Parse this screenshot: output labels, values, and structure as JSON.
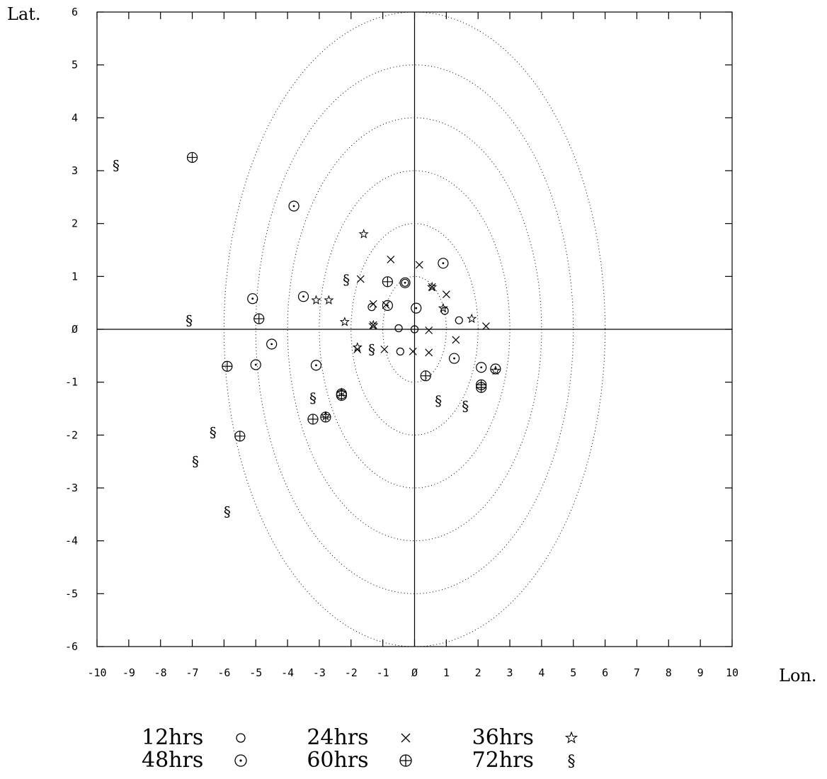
{
  "chart_data": {
    "type": "scatter",
    "title": "",
    "xlabel": "Lon.",
    "ylabel": "Lat.",
    "xlim": [
      -10,
      10
    ],
    "ylim": [
      -6,
      6
    ],
    "x_ticks": [
      -10,
      -9,
      -8,
      -7,
      -6,
      -5,
      -4,
      -3,
      -2,
      -1,
      0,
      1,
      2,
      3,
      4,
      5,
      6,
      7,
      8,
      9,
      10
    ],
    "y_ticks": [
      6,
      5,
      4,
      3,
      2,
      1,
      0,
      -1,
      -2,
      -3,
      -4,
      -5,
      -6
    ],
    "zero_label": "Ø",
    "grid": false,
    "reference_ellipses": [
      1,
      2,
      3,
      4,
      5,
      6
    ],
    "legend_position": "bottom",
    "series": [
      {
        "name": "12hrs",
        "marker": "circle",
        "points": [
          [
            -0.5,
            0.02
          ],
          [
            0,
            0
          ],
          [
            -0.45,
            -0.42
          ],
          [
            1.4,
            0.17
          ],
          [
            -0.3,
            0.88
          ],
          [
            -1.35,
            0.42
          ],
          [
            0.95,
            0.35
          ]
        ]
      },
      {
        "name": "24hrs",
        "marker": "x",
        "points": [
          [
            0.15,
            1.22
          ],
          [
            -1.7,
            0.95
          ],
          [
            -1.3,
            0.48
          ],
          [
            -0.9,
            0.46
          ],
          [
            1.0,
            0.66
          ],
          [
            2.25,
            0.06
          ],
          [
            1.3,
            -0.2
          ],
          [
            0.45,
            -0.44
          ],
          [
            -0.95,
            -0.38
          ],
          [
            -1.8,
            -0.38
          ],
          [
            -0.05,
            -0.42
          ],
          [
            0.45,
            -0.02
          ],
          [
            -0.75,
            1.32
          ],
          [
            -1.3,
            0.08
          ],
          [
            0.55,
            0.8
          ]
        ]
      },
      {
        "name": "36hrs",
        "marker": "star",
        "points": [
          [
            -1.6,
            1.8
          ],
          [
            -3.1,
            0.55
          ],
          [
            -2.7,
            0.55
          ],
          [
            -2.2,
            0.14
          ],
          [
            -1.3,
            0.08
          ],
          [
            0.55,
            0.8
          ],
          [
            0.9,
            0.4
          ],
          [
            1.8,
            0.2
          ],
          [
            2.55,
            -0.78
          ],
          [
            -1.8,
            -0.34
          ],
          [
            -2.8,
            -1.64
          ],
          [
            -2.3,
            -1.2
          ]
        ]
      },
      {
        "name": "48hrs",
        "marker": "circle-dot",
        "points": [
          [
            -3.8,
            2.33
          ],
          [
            0.9,
            1.25
          ],
          [
            -3.5,
            0.62
          ],
          [
            -5.1,
            0.58
          ],
          [
            -4.5,
            -0.28
          ],
          [
            -3.1,
            -0.68
          ],
          [
            -5.0,
            -0.67
          ],
          [
            0.05,
            0.4
          ],
          [
            -0.85,
            0.45
          ],
          [
            -2.3,
            -1.22
          ],
          [
            1.25,
            -0.55
          ],
          [
            2.1,
            -0.72
          ],
          [
            2.55,
            -0.75
          ],
          [
            -0.3,
            0.88
          ]
        ]
      },
      {
        "name": "60hrs",
        "marker": "circle-plus",
        "points": [
          [
            -7.0,
            3.25
          ],
          [
            -0.85,
            0.9
          ],
          [
            -4.9,
            0.2
          ],
          [
            -5.9,
            -0.7
          ],
          [
            0.35,
            -0.88
          ],
          [
            -5.5,
            -2.02
          ],
          [
            -3.2,
            -1.7
          ],
          [
            -2.8,
            -1.66
          ],
          [
            -2.3,
            -1.25
          ],
          [
            2.1,
            -1.05
          ],
          [
            2.1,
            -1.1
          ]
        ]
      },
      {
        "name": "72hrs",
        "marker": "section",
        "points": [
          [
            -9.4,
            3.1
          ],
          [
            -7.1,
            0.17
          ],
          [
            -2.15,
            0.94
          ],
          [
            -1.35,
            -0.38
          ],
          [
            -3.2,
            -1.3
          ],
          [
            0.75,
            -1.35
          ],
          [
            1.6,
            -1.45
          ],
          [
            -6.35,
            -1.95
          ],
          [
            -6.9,
            -2.5
          ],
          [
            -5.9,
            -3.45
          ]
        ]
      }
    ]
  }
}
